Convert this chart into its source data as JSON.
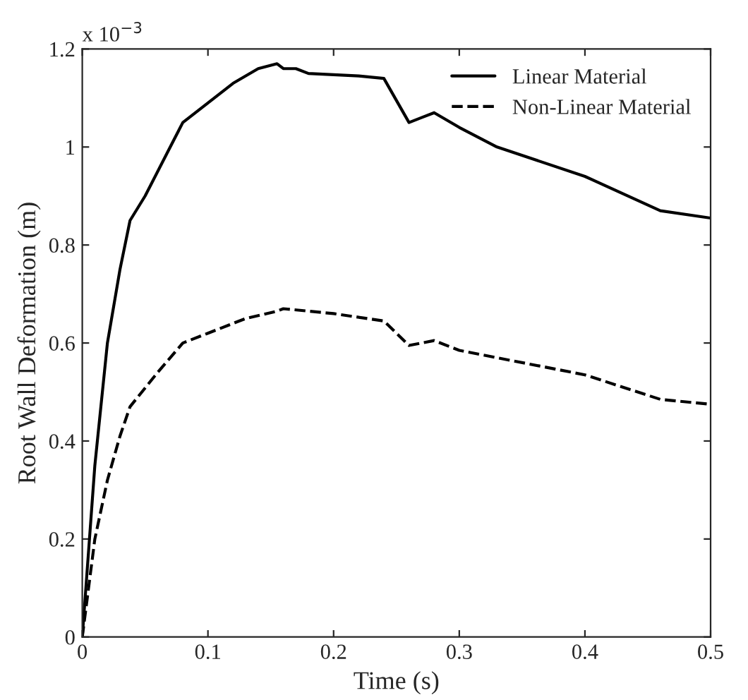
{
  "chart_data": {
    "type": "line",
    "xlabel": "Time (s)",
    "ylabel": "Root Wall Deformation (m)",
    "annotations": [
      "x 10$^{−3}$"
    ],
    "xlim": [
      0,
      0.5
    ],
    "xticks": [
      0,
      0.1,
      0.2,
      0.3,
      0.4,
      0.5
    ],
    "ylim": [
      0,
      1.2
    ],
    "yticks": [
      0,
      0.2,
      0.4,
      0.6,
      0.8,
      1,
      1.2
    ],
    "grid": false,
    "legend": "top right",
    "series": [
      {
        "name": "Linear Material",
        "color": "#000000",
        "line_style": "solid",
        "x": [
          0,
          0.01,
          0.02,
          0.03,
          0.038,
          0.05,
          0.07,
          0.08,
          0.1,
          0.12,
          0.14,
          0.155,
          0.16,
          0.17,
          0.18,
          0.22,
          0.24,
          0.26,
          0.27,
          0.28,
          0.3,
          0.33,
          0.4,
          0.46,
          0.5
        ],
        "values": [
          0,
          0.35,
          0.6,
          0.75,
          0.85,
          0.9,
          1.0,
          1.05,
          1.09,
          1.13,
          1.16,
          1.17,
          1.16,
          1.16,
          1.15,
          1.145,
          1.14,
          1.05,
          1.06,
          1.07,
          1.04,
          1.0,
          0.94,
          0.87,
          0.855
        ]
      },
      {
        "name": "Non-Linear Material",
        "color": "#000000",
        "line_style": "dashed",
        "x": [
          0,
          0.01,
          0.02,
          0.03,
          0.038,
          0.06,
          0.08,
          0.1,
          0.13,
          0.155,
          0.16,
          0.2,
          0.24,
          0.26,
          0.28,
          0.3,
          0.4,
          0.46,
          0.5
        ],
        "values": [
          0,
          0.2,
          0.32,
          0.41,
          0.47,
          0.54,
          0.6,
          0.62,
          0.65,
          0.665,
          0.67,
          0.66,
          0.645,
          0.595,
          0.605,
          0.585,
          0.535,
          0.485,
          0.475
        ]
      }
    ]
  }
}
